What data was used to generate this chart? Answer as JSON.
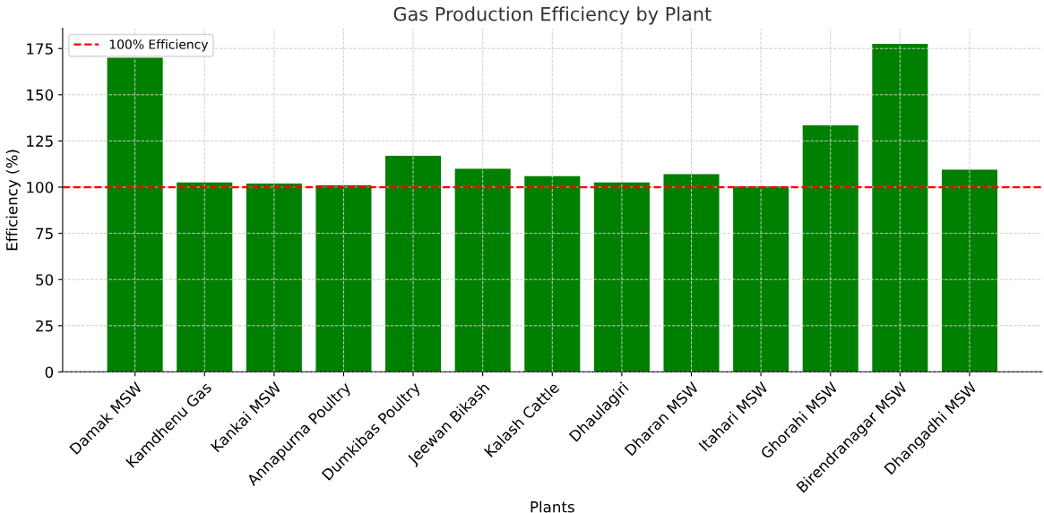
{
  "chart_data": {
    "type": "bar",
    "title": "Gas Production Efficiency by Plant",
    "xlabel": "Plants",
    "ylabel": "Efficiency (%)",
    "categories": [
      "Damak MSW",
      "Kamdhenu Gas",
      "Kankai MSW",
      "Annapurna Poultry",
      "Dumkibas Poultry",
      "Jeewan Bikash",
      "Kalash Cattle",
      "Dhaulagiri",
      "Dharan MSW",
      "Itahari MSW",
      "Ghorahi MSW",
      "Birendranagar MSW",
      "Dhangadhi MSW"
    ],
    "values": [
      170,
      102.5,
      102,
      101,
      117,
      110,
      106,
      102.5,
      107,
      100.5,
      133.5,
      177.5,
      109.5
    ],
    "color": "#008000",
    "ylim": [
      0,
      186
    ],
    "yticks": [
      0,
      25,
      50,
      75,
      100,
      125,
      150,
      175
    ],
    "ref_lines": [
      {
        "axis": "y",
        "value": 100,
        "label": "100% Efficiency",
        "color": "#ff0000",
        "line_style": "dashed"
      }
    ],
    "grid": true,
    "legend": "top left"
  }
}
